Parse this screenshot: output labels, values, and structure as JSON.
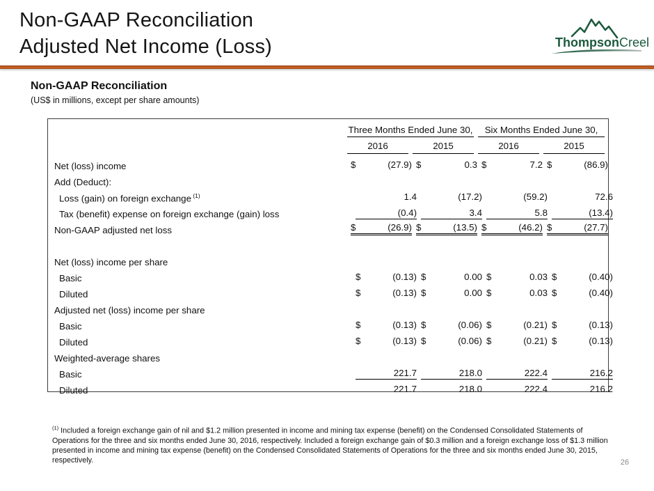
{
  "slide": {
    "title_line1": "Non-GAAP Reconciliation",
    "title_line2": "Adjusted Net Income (Loss)",
    "page_number": "26"
  },
  "logo": {
    "text_bold": "Thompson",
    "text_light": "Creek",
    "brand_color": "#1d5a3e"
  },
  "colors": {
    "divider_orange": "#cb6526",
    "logo_green": "#1d5a3e",
    "page_number_gray": "#8a8a8a"
  },
  "section": {
    "heading": "Non-GAAP Reconciliation",
    "subheading": "(US$ in millions, except per share amounts)"
  },
  "table": {
    "col_groups": [
      "Three Months Ended June 30,",
      "Six Months Ended June 30,"
    ],
    "col_years": [
      "2016",
      "2015",
      "2016",
      "2015"
    ],
    "rows": [
      {
        "label": "Net (loss) income",
        "indent": 0,
        "dollar": true,
        "values": [
          "(27.9)",
          "0.3",
          "7.2",
          "(86.9)"
        ]
      },
      {
        "label": "Add (Deduct):",
        "indent": 0
      },
      {
        "label": "Loss (gain) on foreign exchange",
        "sup": "(1)",
        "indent": 1,
        "values": [
          "1.4",
          "(17.2)",
          "(59.2)",
          "72.6"
        ]
      },
      {
        "label": "Tax (benefit) expense on foreign exchange (gain) loss",
        "indent": 1,
        "values": [
          "(0.4)",
          "3.4",
          "5.8",
          "(13.4)"
        ],
        "underline": "single"
      },
      {
        "label": "Non-GAAP adjusted net loss",
        "indent": 0,
        "dollar": true,
        "values": [
          "(26.9)",
          "(13.5)",
          "(46.2)",
          "(27.7)"
        ],
        "underline": "double"
      },
      {
        "label": "",
        "spacer": true
      },
      {
        "label": "Net (loss) income per share",
        "indent": 0
      },
      {
        "label": "Basic",
        "indent": 1,
        "dollar": true,
        "values": [
          "(0.13)",
          "0.00",
          "0.03",
          "(0.40)"
        ]
      },
      {
        "label": "Diluted",
        "indent": 1,
        "dollar": true,
        "values": [
          "(0.13)",
          "0.00",
          "0.03",
          "(0.40)"
        ]
      },
      {
        "label": "Adjusted net (loss) income per share",
        "indent": 0
      },
      {
        "label": "Basic",
        "indent": 1,
        "dollar": true,
        "values": [
          "(0.13)",
          "(0.06)",
          "(0.21)",
          "(0.13)"
        ]
      },
      {
        "label": "Diluted",
        "indent": 1,
        "dollar": true,
        "values": [
          "(0.13)",
          "(0.06)",
          "(0.21)",
          "(0.13)"
        ]
      },
      {
        "label": "Weighted-average shares",
        "indent": 0
      },
      {
        "label": "Basic",
        "indent": 1,
        "values": [
          "221.7",
          "218.0",
          "222.4",
          "216.2"
        ],
        "underline": "single"
      },
      {
        "label": "Diluted",
        "indent": 1,
        "values": [
          "221.7",
          "218.0",
          "222.4",
          "216.2"
        ]
      }
    ]
  },
  "footnote": {
    "marker": "(1)",
    "text": "Included a foreign exchange gain of nil and $1.2 million presented in income and mining tax expense (benefit) on the Condensed Consolidated Statements of Operations for the three and six months ended June 30, 2016, respectively. Included a foreign exchange gain of $0.3 million and a foreign exchange loss of $1.3 million presented in income and mining tax expense (benefit) on the Condensed Consolidated Statements of Operations for the three and six months ended June 30, 2015, respectively."
  }
}
